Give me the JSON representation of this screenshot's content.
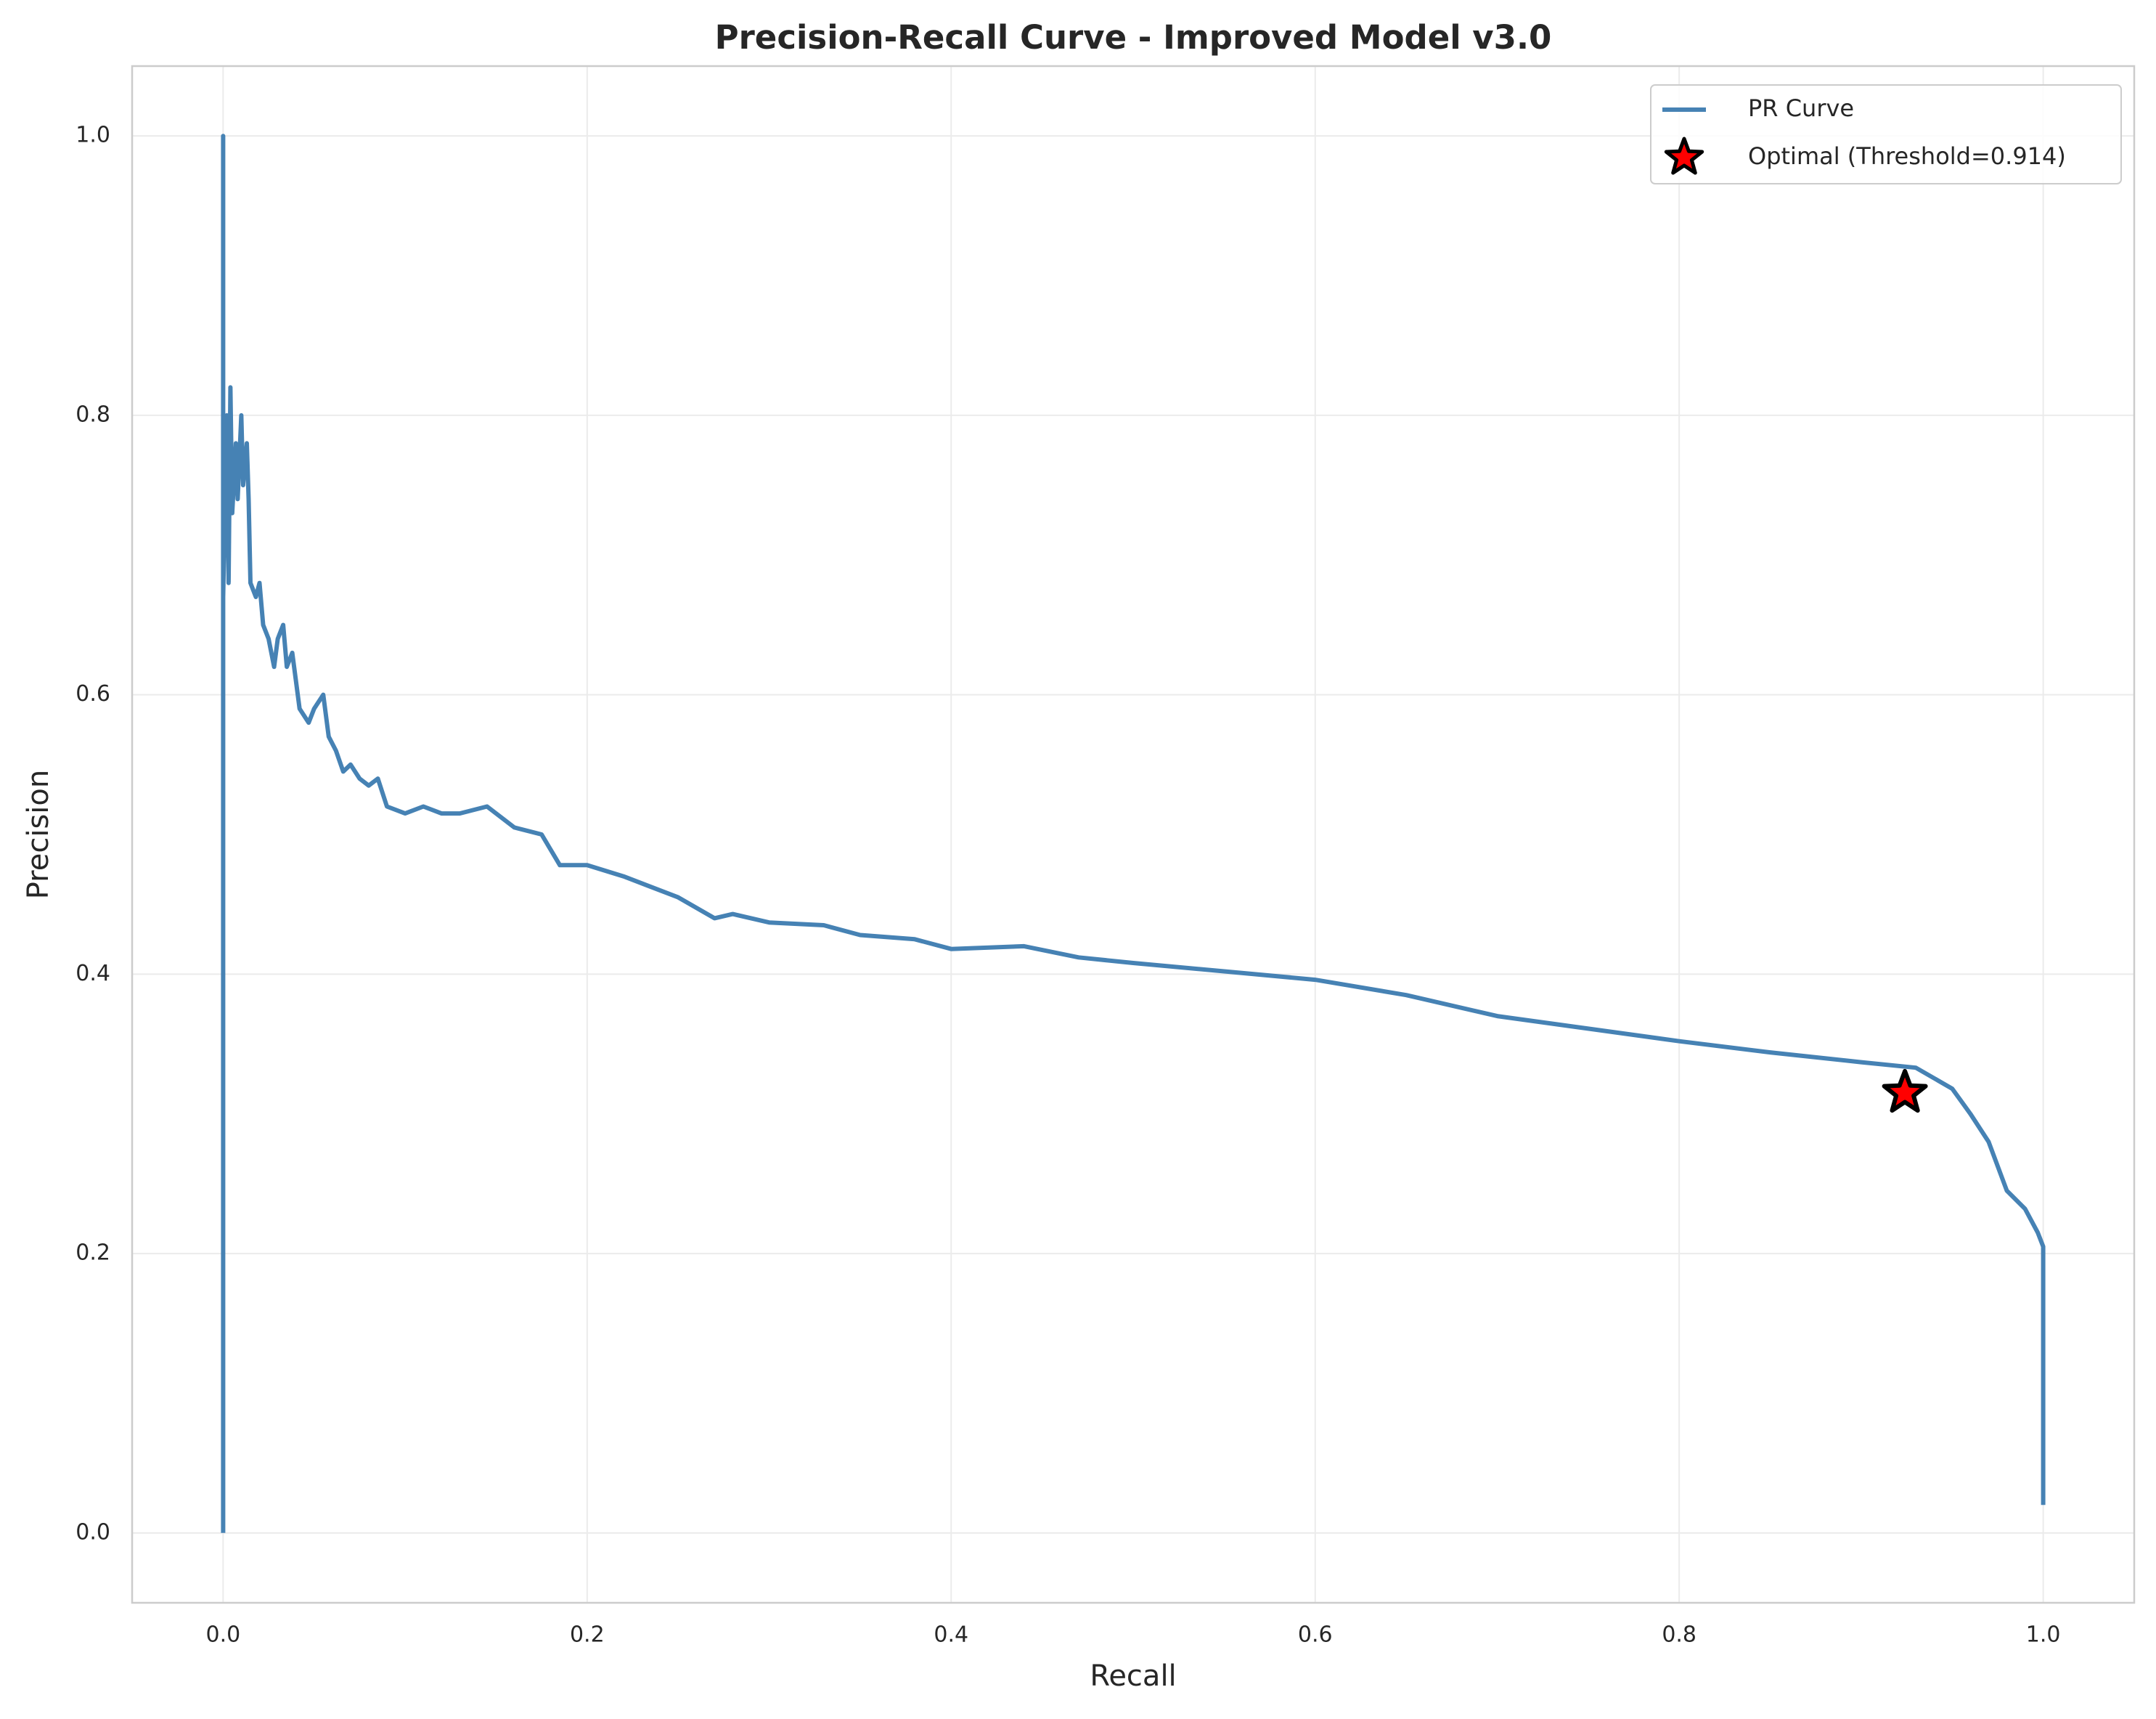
{
  "chart_data": {
    "type": "line",
    "title": "Precision-Recall Curve - Improved Model v3.0",
    "xlabel": "Recall",
    "ylabel": "Precision",
    "xlim": [
      -0.05,
      1.05
    ],
    "ylim": [
      -0.05,
      1.05
    ],
    "xticks": [
      {
        "value": 0,
        "label": "0.0"
      },
      0.2,
      0.4,
      0.6,
      0.8,
      {
        "value": 1,
        "label": "1.0"
      }
    ],
    "yticks": [
      {
        "value": 0,
        "label": "0.0"
      },
      0.2,
      0.4,
      0.6,
      0.8,
      {
        "value": 1,
        "label": "1.0"
      }
    ],
    "grid": true,
    "legend": "upper right",
    "series": [
      {
        "name": "PR Curve",
        "type": "line",
        "color": "#4682b4",
        "x": [
          0,
          0,
          0,
          0.002,
          0.003,
          0.004,
          0.005,
          0.007,
          0.008,
          0.01,
          0.011,
          0.013,
          0.014,
          0.015,
          0.018,
          0.02,
          0.022,
          0.025,
          0.028,
          0.03,
          0.033,
          0.035,
          0.038,
          0.042,
          0.047,
          0.05,
          0.055,
          0.058,
          0.062,
          0.066,
          0.07,
          0.075,
          0.08,
          0.085,
          0.09,
          0.1,
          0.11,
          0.12,
          0.13,
          0.145,
          0.16,
          0.175,
          0.185,
          0.2,
          0.22,
          0.25,
          0.27,
          0.28,
          0.3,
          0.33,
          0.35,
          0.38,
          0.4,
          0.44,
          0.47,
          0.5,
          0.55,
          0.6,
          0.65,
          0.7,
          0.75,
          0.8,
          0.85,
          0.9,
          0.93,
          0.95,
          0.96,
          0.97,
          0.98,
          0.99,
          0.997,
          1,
          1
        ],
        "values": [
          0,
          1,
          0.67,
          0.8,
          0.68,
          0.82,
          0.73,
          0.78,
          0.74,
          0.8,
          0.75,
          0.78,
          0.74,
          0.68,
          0.67,
          0.68,
          0.65,
          0.64,
          0.62,
          0.64,
          0.65,
          0.62,
          0.63,
          0.59,
          0.58,
          0.59,
          0.6,
          0.57,
          0.56,
          0.545,
          0.55,
          0.54,
          0.535,
          0.54,
          0.52,
          0.515,
          0.52,
          0.515,
          0.515,
          0.52,
          0.505,
          0.5,
          0.478,
          0.478,
          0.47,
          0.455,
          0.44,
          0.443,
          0.437,
          0.435,
          0.428,
          0.425,
          0.418,
          0.42,
          0.412,
          0.408,
          0.402,
          0.396,
          0.385,
          0.37,
          0.361,
          0.352,
          0.344,
          0.337,
          0.333,
          0.318,
          0.3,
          0.28,
          0.245,
          0.232,
          0.215,
          0.205,
          0.02
        ]
      },
      {
        "name": "Optimal (Threshold=0.914)",
        "type": "scatter",
        "color": "#ff0000",
        "edgecolor": "#000000",
        "x": [
          0.924
        ],
        "values": [
          0.315
        ]
      }
    ]
  }
}
